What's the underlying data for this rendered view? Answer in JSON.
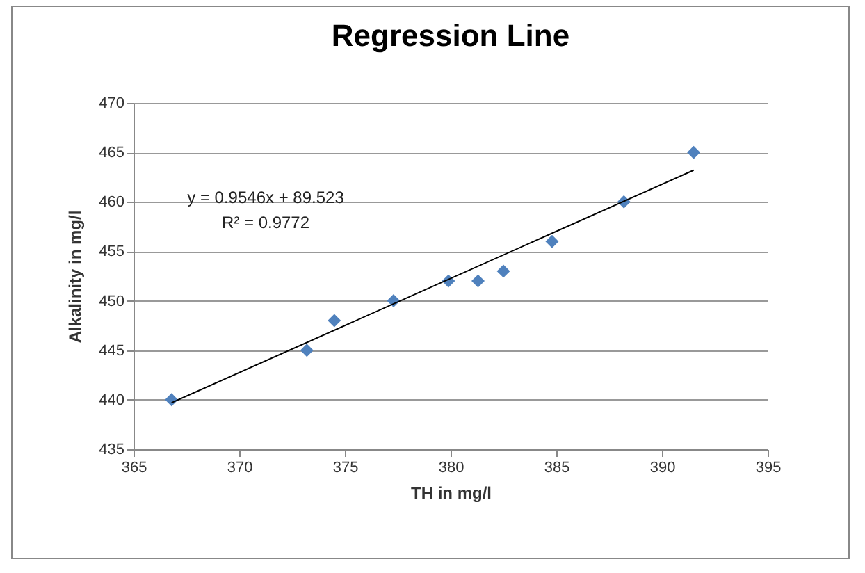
{
  "chart_data": {
    "type": "scatter",
    "title": "Regression Line",
    "xlabel": "TH in mg/l",
    "ylabel": "Alkalinity  in mg/l",
    "annotations": [
      "y = 0.9546x  + 89.523",
      "R² = 0.9772"
    ],
    "series": [
      {
        "color": "#4f81bd",
        "marker": "diamond",
        "x": [
          366.8,
          373.2,
          374.5,
          377.3,
          379.9,
          381.3,
          382.5,
          384.8,
          388.2,
          391.5
        ],
        "values": [
          440,
          445,
          448,
          450,
          452,
          452,
          453,
          456,
          460,
          465
        ]
      },
      {
        "type": "line",
        "color": "#000000",
        "line_style": "solid",
        "x": [
          366.8,
          391.5
        ],
        "values": [
          439.7,
          463.2
        ]
      }
    ],
    "xlim": [
      365,
      395
    ],
    "xticks": [
      365,
      370,
      375,
      380,
      385,
      390,
      395
    ],
    "ylim": [
      435,
      470
    ],
    "yticks": [
      435,
      440,
      445,
      450,
      455,
      460,
      465,
      470
    ],
    "grid": "y"
  }
}
